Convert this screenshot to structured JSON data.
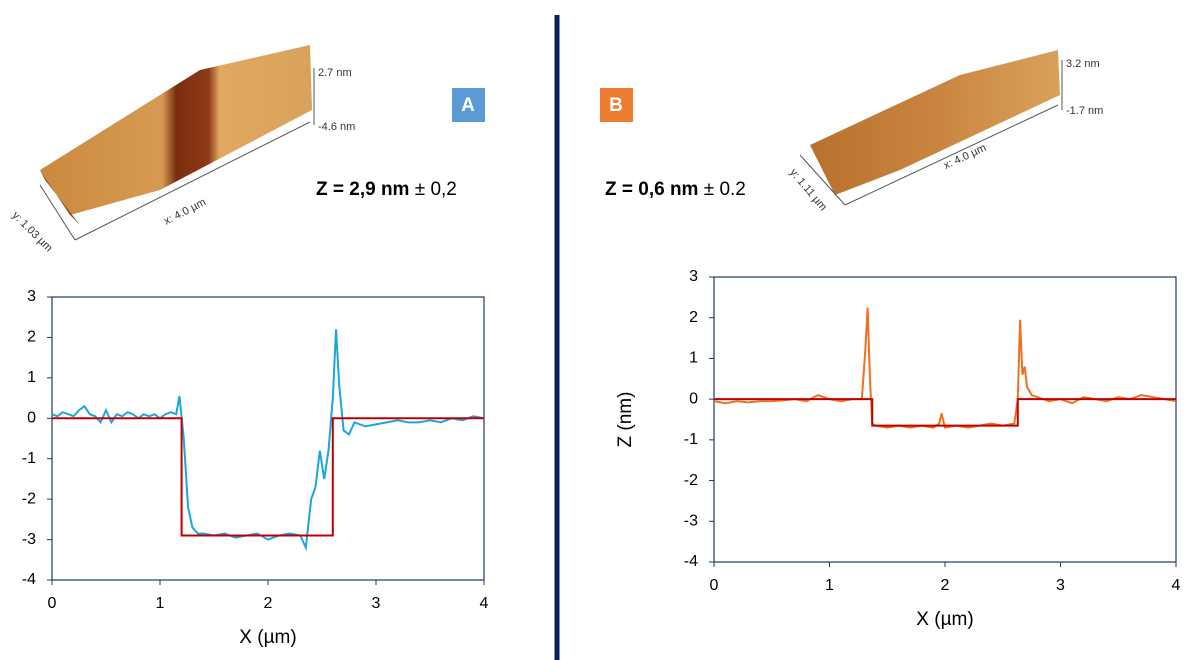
{
  "chart_data": [
    {
      "type": "line",
      "panel": "A",
      "z_label": "Z = 2,9 nm",
      "z_error": "± 0,2",
      "afm_labels": [
        "2.7 nm",
        "-4.6 nm",
        "x: 4.0 µm",
        "y: 1.03 µm"
      ],
      "x_label": "X (µm)",
      "xlim": [
        0,
        4
      ],
      "ylim": [
        -4,
        3
      ],
      "xticks": [
        0,
        1,
        2,
        3,
        4
      ],
      "yticks": [
        -4,
        -3,
        -2,
        -1,
        0,
        1,
        2,
        3
      ],
      "series": [
        {
          "color": "#1aa7e0",
          "x": [
            0,
            0.05,
            0.1,
            0.15,
            0.2,
            0.25,
            0.3,
            0.35,
            0.4,
            0.45,
            0.5,
            0.55,
            0.6,
            0.65,
            0.7,
            0.75,
            0.8,
            0.85,
            0.9,
            0.95,
            1.0,
            1.05,
            1.1,
            1.15,
            1.18,
            1.22,
            1.26,
            1.3,
            1.35,
            1.4,
            1.5,
            1.6,
            1.7,
            1.8,
            1.9,
            2.0,
            2.1,
            2.2,
            2.3,
            2.35,
            2.4,
            2.44,
            2.48,
            2.52,
            2.56,
            2.6,
            2.63,
            2.66,
            2.7,
            2.75,
            2.8,
            2.9,
            3.0,
            3.1,
            3.2,
            3.3,
            3.4,
            3.5,
            3.6,
            3.7,
            3.8,
            3.9,
            4.0
          ],
          "values": [
            0.1,
            0.05,
            0.15,
            0.1,
            0.05,
            0.2,
            0.3,
            0.1,
            0.05,
            -0.1,
            0.2,
            -0.1,
            0.1,
            0.05,
            0.15,
            0.1,
            0.0,
            0.1,
            0.05,
            0.1,
            0.0,
            0.1,
            0.15,
            0.1,
            0.55,
            -0.5,
            -2.2,
            -2.7,
            -2.85,
            -2.85,
            -2.9,
            -2.85,
            -2.95,
            -2.9,
            -2.85,
            -3.0,
            -2.9,
            -2.85,
            -2.9,
            -3.2,
            -2.0,
            -1.7,
            -0.8,
            -1.5,
            -0.8,
            0.5,
            2.2,
            0.8,
            -0.3,
            -0.4,
            -0.1,
            -0.2,
            -0.15,
            -0.1,
            -0.05,
            -0.1,
            -0.1,
            -0.05,
            -0.1,
            0.0,
            -0.05,
            0.05,
            0.0
          ]
        },
        {
          "color": "#c00000",
          "x": [
            0,
            1.2,
            1.2,
            2.6,
            2.6,
            4
          ],
          "values": [
            0,
            0,
            -2.9,
            -2.9,
            0,
            0
          ]
        }
      ]
    },
    {
      "type": "line",
      "panel": "B",
      "z_label": "Z = 0,6 nm",
      "z_error": "± 0.2",
      "afm_labels": [
        "3.2 nm",
        "-1.7 nm",
        "x: 4.0 µm",
        "y: 1.11 µm"
      ],
      "x_label": "X (µm)",
      "y_label": "Z (nm)",
      "xlim": [
        0,
        4
      ],
      "ylim": [
        -4,
        3
      ],
      "xticks": [
        0,
        1,
        2,
        3,
        4
      ],
      "yticks": [
        -4,
        -3,
        -2,
        -1,
        0,
        1,
        2,
        3
      ],
      "series": [
        {
          "color": "#f07020",
          "x": [
            0,
            0.1,
            0.2,
            0.3,
            0.4,
            0.5,
            0.6,
            0.7,
            0.8,
            0.9,
            1.0,
            1.1,
            1.2,
            1.28,
            1.31,
            1.33,
            1.35,
            1.37,
            1.4,
            1.5,
            1.6,
            1.7,
            1.8,
            1.9,
            1.95,
            1.97,
            2.0,
            2.1,
            2.2,
            2.3,
            2.4,
            2.5,
            2.6,
            2.63,
            2.65,
            2.67,
            2.69,
            2.71,
            2.75,
            2.8,
            2.9,
            3.0,
            3.1,
            3.2,
            3.3,
            3.4,
            3.5,
            3.6,
            3.7,
            3.8,
            3.9,
            4.0
          ],
          "values": [
            -0.05,
            -0.1,
            -0.05,
            -0.08,
            -0.05,
            -0.05,
            -0.03,
            0.0,
            -0.05,
            0.1,
            0.0,
            -0.05,
            0.0,
            0.0,
            1.2,
            2.25,
            0.5,
            -0.6,
            -0.65,
            -0.7,
            -0.65,
            -0.7,
            -0.65,
            -0.7,
            -0.6,
            -0.35,
            -0.7,
            -0.65,
            -0.7,
            -0.65,
            -0.6,
            -0.65,
            -0.6,
            0.0,
            1.95,
            0.6,
            0.8,
            0.3,
            0.1,
            0.05,
            -0.05,
            0.0,
            -0.1,
            0.05,
            0.0,
            -0.05,
            0.05,
            0.0,
            0.1,
            0.05,
            0.0,
            -0.05
          ]
        },
        {
          "color": "#c00000",
          "x": [
            0,
            1.37,
            1.37,
            2.63,
            2.63,
            4
          ],
          "values": [
            0,
            0,
            -0.65,
            -0.65,
            0,
            0
          ]
        }
      ]
    }
  ]
}
